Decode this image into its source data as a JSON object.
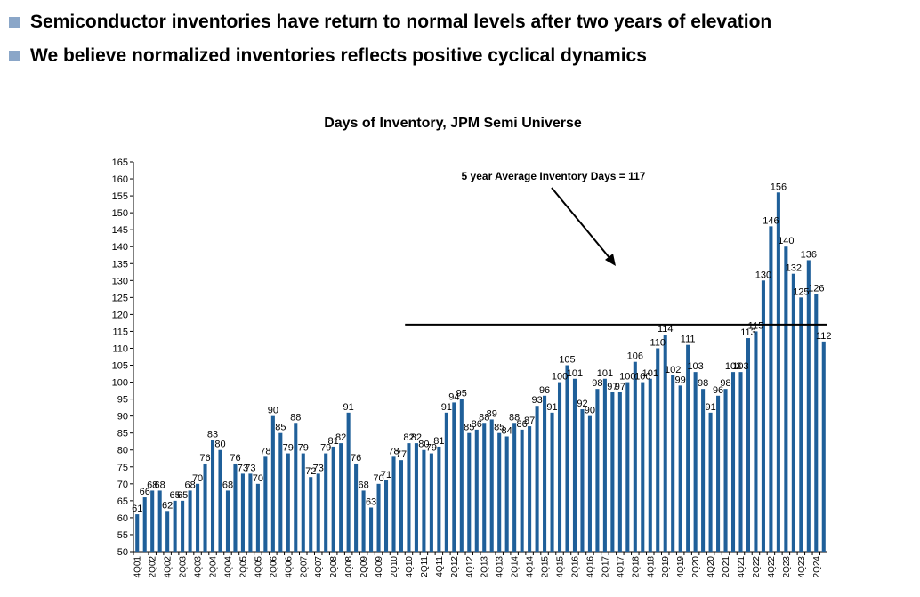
{
  "bullets": [
    "Semiconductor inventories have return to normal levels after two years of elevation",
    "We believe normalized inventories reflects positive cyclical dynamics"
  ],
  "colors": {
    "bar": "#1f5f99",
    "bullet": "#8aa6c8",
    "line": "#000000"
  },
  "chart_data": {
    "type": "bar",
    "title": "Days of Inventory, JPM Semi Universe",
    "xlabel": "",
    "ylabel": "",
    "ylim": [
      50,
      165
    ],
    "ytick_step": 5,
    "grid": false,
    "categories": [
      "4Q01",
      "1Q02",
      "2Q02",
      "3Q02",
      "4Q02",
      "1Q03",
      "2Q03",
      "3Q03",
      "4Q03",
      "1Q04",
      "2Q04",
      "3Q04",
      "4Q04",
      "1Q05",
      "2Q05",
      "3Q05",
      "4Q05",
      "1Q06",
      "2Q06",
      "3Q06",
      "4Q06",
      "1Q07",
      "2Q07",
      "3Q07",
      "4Q07",
      "1Q08",
      "2Q08",
      "3Q08",
      "4Q08",
      "1Q09",
      "2Q09",
      "3Q09",
      "4Q09",
      "1Q10",
      "2Q10",
      "3Q10",
      "4Q10",
      "1Q11",
      "2Q11",
      "3Q11",
      "4Q11",
      "1Q12",
      "2Q12",
      "3Q12",
      "4Q12",
      "1Q13",
      "2Q13",
      "3Q13",
      "4Q13",
      "1Q14",
      "2Q14",
      "3Q14",
      "4Q14",
      "1Q15",
      "2Q15",
      "3Q15",
      "4Q15",
      "1Q16",
      "2Q16",
      "3Q16",
      "4Q16",
      "1Q17",
      "2Q17",
      "3Q17",
      "4Q17",
      "1Q18",
      "2Q18",
      "3Q18",
      "4Q18",
      "1Q19",
      "2Q19",
      "3Q19",
      "4Q19",
      "1Q20",
      "2Q20",
      "3Q20",
      "4Q20",
      "1Q21",
      "2Q21",
      "3Q21",
      "4Q21",
      "1Q22",
      "2Q22",
      "3Q22",
      "4Q22",
      "1Q23",
      "2Q23",
      "3Q23",
      "4Q23",
      "1Q24",
      "2Q24",
      "3Q24"
    ],
    "tick_labels_shown": [
      "4Q01",
      "2Q02",
      "4Q02",
      "2Q03",
      "4Q03",
      "2Q04",
      "4Q04",
      "2Q05",
      "4Q05",
      "2Q06",
      "4Q06",
      "2Q07",
      "4Q07",
      "2Q08",
      "4Q08",
      "2Q09",
      "4Q09",
      "2Q10",
      "4Q10",
      "2Q11",
      "4Q11",
      "2Q12",
      "4Q12",
      "2Q13",
      "4Q13",
      "2Q14",
      "4Q14",
      "2Q15",
      "4Q15",
      "2Q16",
      "4Q16",
      "2Q17",
      "4Q17",
      "2Q18",
      "4Q18",
      "2Q19",
      "4Q19",
      "2Q20",
      "4Q20",
      "2Q21",
      "4Q21",
      "2Q22",
      "4Q22",
      "2Q23",
      "4Q23",
      "2Q24"
    ],
    "values": [
      61,
      66,
      68,
      68,
      62,
      65,
      65,
      68,
      70,
      76,
      83,
      80,
      68,
      76,
      73,
      73,
      70,
      78,
      90,
      85,
      79,
      88,
      79,
      72,
      73,
      79,
      81,
      82,
      91,
      76,
      68,
      63,
      70,
      71,
      78,
      77,
      82,
      82,
      80,
      79,
      81,
      91,
      94,
      95,
      85,
      86,
      88,
      89,
      85,
      84,
      88,
      86,
      87,
      93,
      96,
      91,
      100,
      105,
      101,
      92,
      90,
      98,
      101,
      97,
      97,
      100,
      106,
      100,
      101,
      110,
      114,
      102,
      99,
      111,
      103,
      98,
      91,
      96,
      98,
      103,
      103,
      113,
      115,
      130,
      146,
      156,
      140,
      132,
      125,
      136,
      126,
      112
    ],
    "reference_line": {
      "value": 117,
      "from_category": "4Q10"
    },
    "annotation": "5 year Average Inventory Days = 117"
  }
}
